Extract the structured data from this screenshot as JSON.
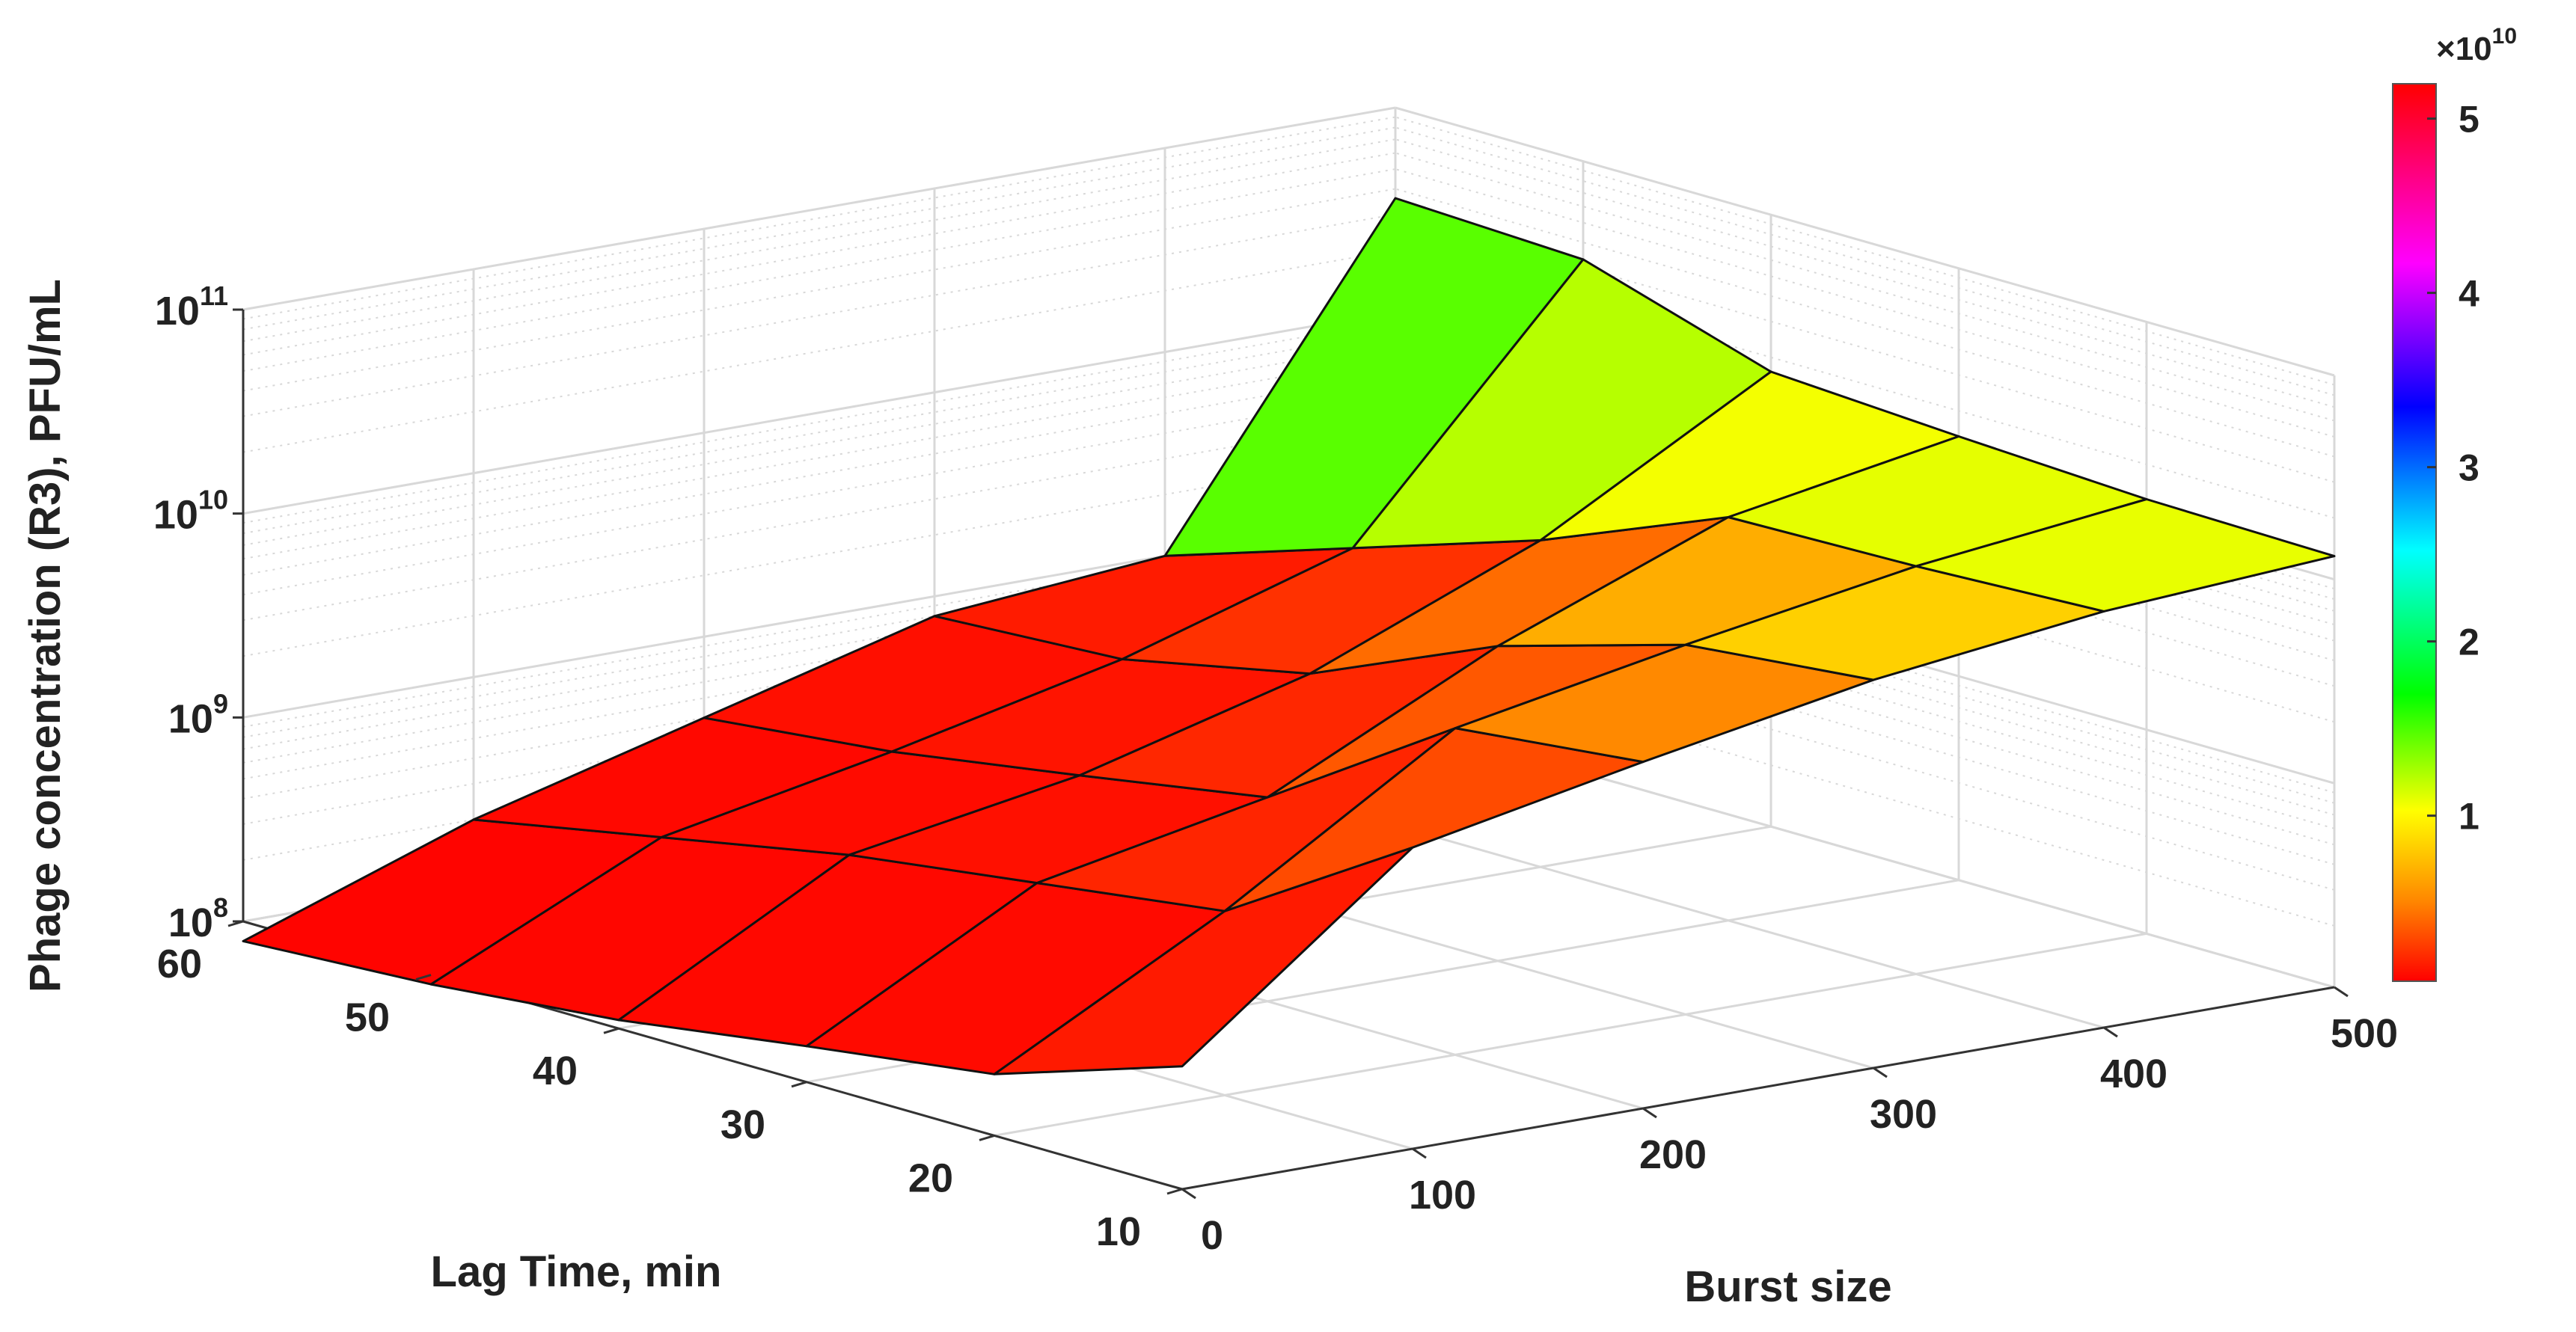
{
  "chart_data": {
    "type": "surface",
    "title": "",
    "xlabel": "Burst size",
    "ylabel": "Lag Time, min",
    "zlabel": "Phage concentration (R3), PFU/mL",
    "zscale": "log",
    "zlim": [
      100000000,
      100000000000
    ],
    "z_ticks": [
      {
        "base": "10",
        "exp": "8"
      },
      {
        "base": "10",
        "exp": "9"
      },
      {
        "base": "10",
        "exp": "10"
      },
      {
        "base": "10",
        "exp": "11"
      }
    ],
    "x_ticks": [
      "0",
      "100",
      "200",
      "300",
      "400",
      "500"
    ],
    "y_ticks": [
      "10",
      "20",
      "30",
      "40",
      "50",
      "60"
    ],
    "burst_size": [
      0,
      100,
      200,
      300,
      400,
      500
    ],
    "lag_time": [
      10,
      20,
      30,
      40,
      50,
      60
    ],
    "z_values": [
      [
        400000000,
        3000000000,
        5000000000,
        8000000000,
        11000000000,
        13000000000
      ],
      [
        200000000,
        800000000,
        4000000000,
        6500000000,
        10000000000,
        13500000000
      ],
      [
        150000000,
        600000000,
        1000000000,
        3500000000,
        9500000000,
        15000000000
      ],
      [
        110000000,
        450000000,
        700000000,
        1400000000,
        4000000000,
        17000000000
      ],
      [
        90000000,
        300000000,
        500000000,
        900000000,
        2000000000,
        33000000000
      ],
      [
        80000000,
        200000000,
        400000000,
        800000000,
        1000000000,
        36000000000
      ]
    ],
    "colorbar": {
      "colormap": "hsv",
      "multiplier": "×10",
      "multiplier_exp": "10",
      "ticks": [
        "1",
        "2",
        "3",
        "4",
        "5"
      ],
      "range": [
        0.05,
        5.2
      ]
    },
    "grid": true,
    "legend": "none"
  }
}
